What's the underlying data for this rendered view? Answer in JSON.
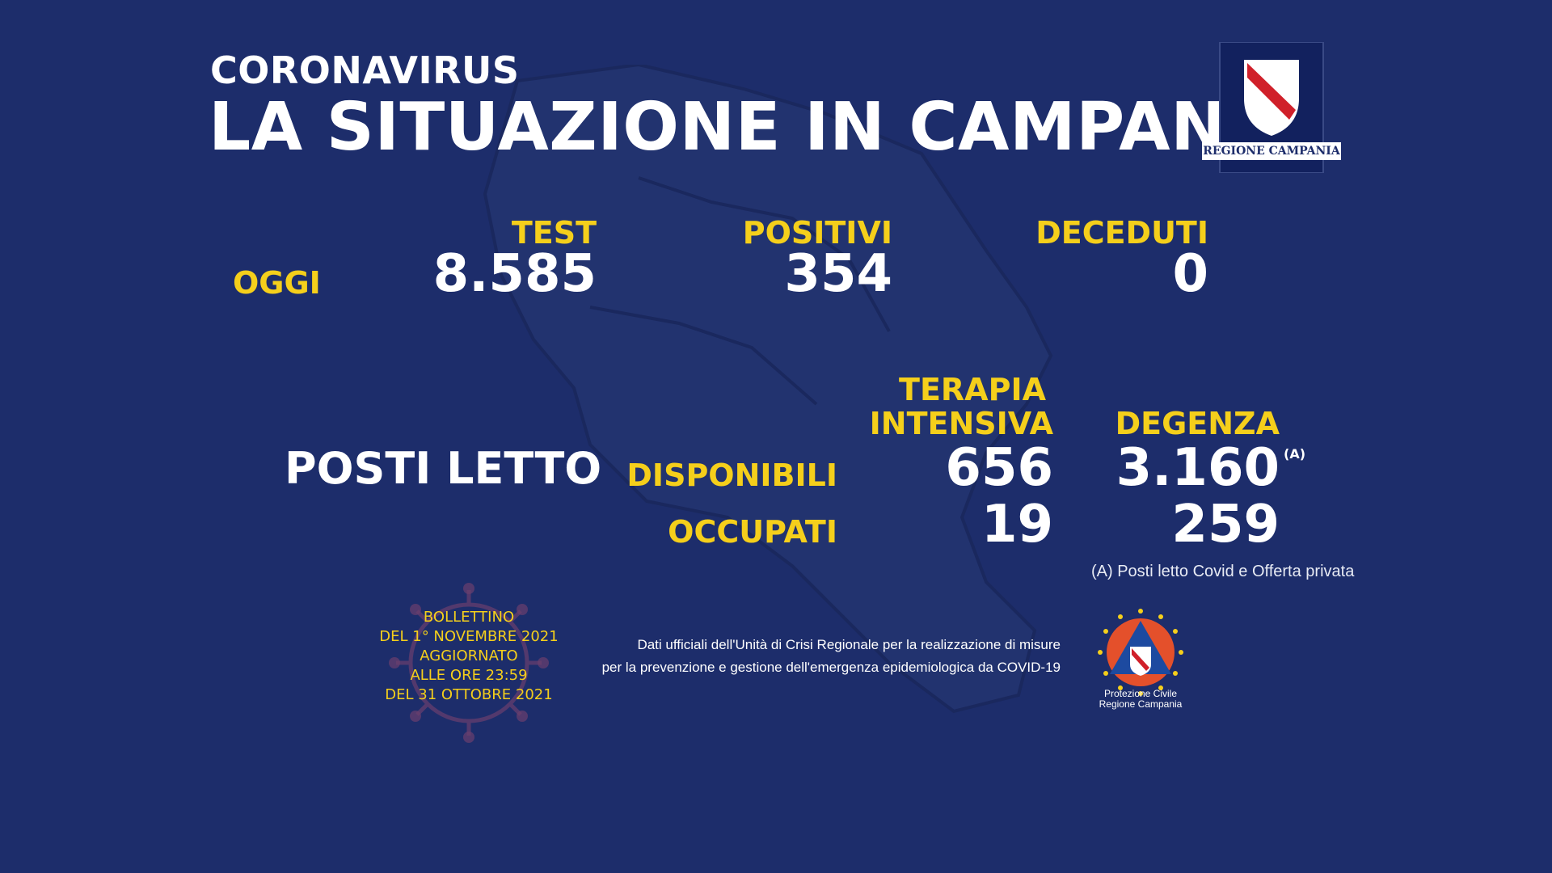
{
  "header": {
    "kicker": "CORONAVIRUS",
    "title": "LA SITUAZIONE IN CAMPANIA"
  },
  "logo": {
    "caption": "REGIONE CAMPANIA"
  },
  "today": {
    "row_label": "OGGI",
    "test_label": "TEST",
    "test_value": "8.585",
    "positive_label": "POSITIVI",
    "positive_value": "354",
    "deaths_label": "DECEDUTI",
    "deaths_value": "0"
  },
  "beds": {
    "section_label": "POSTI LETTO",
    "icu_label_line1": "TERAPIA",
    "icu_label_line2": "INTENSIVA",
    "ward_label": "DEGENZA",
    "available_label": "DISPONIBILI",
    "occupied_label": "OCCUPATI",
    "icu_available": "656",
    "ward_available": "3.160",
    "ward_note_marker": "(A)",
    "icu_occupied": "19",
    "ward_occupied": "259",
    "footnote": "(A) Posti letto Covid e Offerta privata"
  },
  "bulletin": {
    "lines": [
      "BOLLETTINO",
      "DEL 1° NOVEMBRE 2021",
      "AGGIORNATO",
      "ALLE ORE 23:59",
      "DEL 31 OTTOBRE 2021"
    ]
  },
  "official_note": {
    "line1": "Dati ufficiali dell'Unità di Crisi Regionale per la realizzazione di misure",
    "line2": "per la prevenzione e gestione dell'emergenza epidemiologica da COVID-19"
  },
  "civil_protection": {
    "line1": "Protezione Civile",
    "line2": "Regione Campania"
  },
  "colors": {
    "background": "#1d2d6b",
    "accent_yellow": "#f5cf1b",
    "text_white": "#ffffff"
  }
}
